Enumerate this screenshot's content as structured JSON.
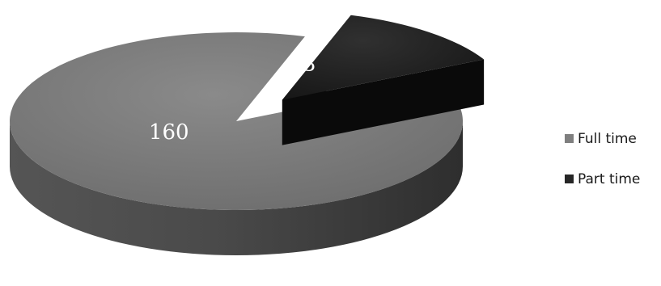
{
  "chart_data": {
    "type": "pie",
    "categories": [
      "Full time",
      "Part time"
    ],
    "values": [
      160,
      23
    ],
    "colors": [
      "#7f7f7f",
      "#262626"
    ],
    "labels_on_slices": true,
    "exploded": "Part time",
    "three_d": true,
    "legend": {
      "position": "right",
      "entries": [
        "Full time",
        "Part time"
      ]
    }
  }
}
